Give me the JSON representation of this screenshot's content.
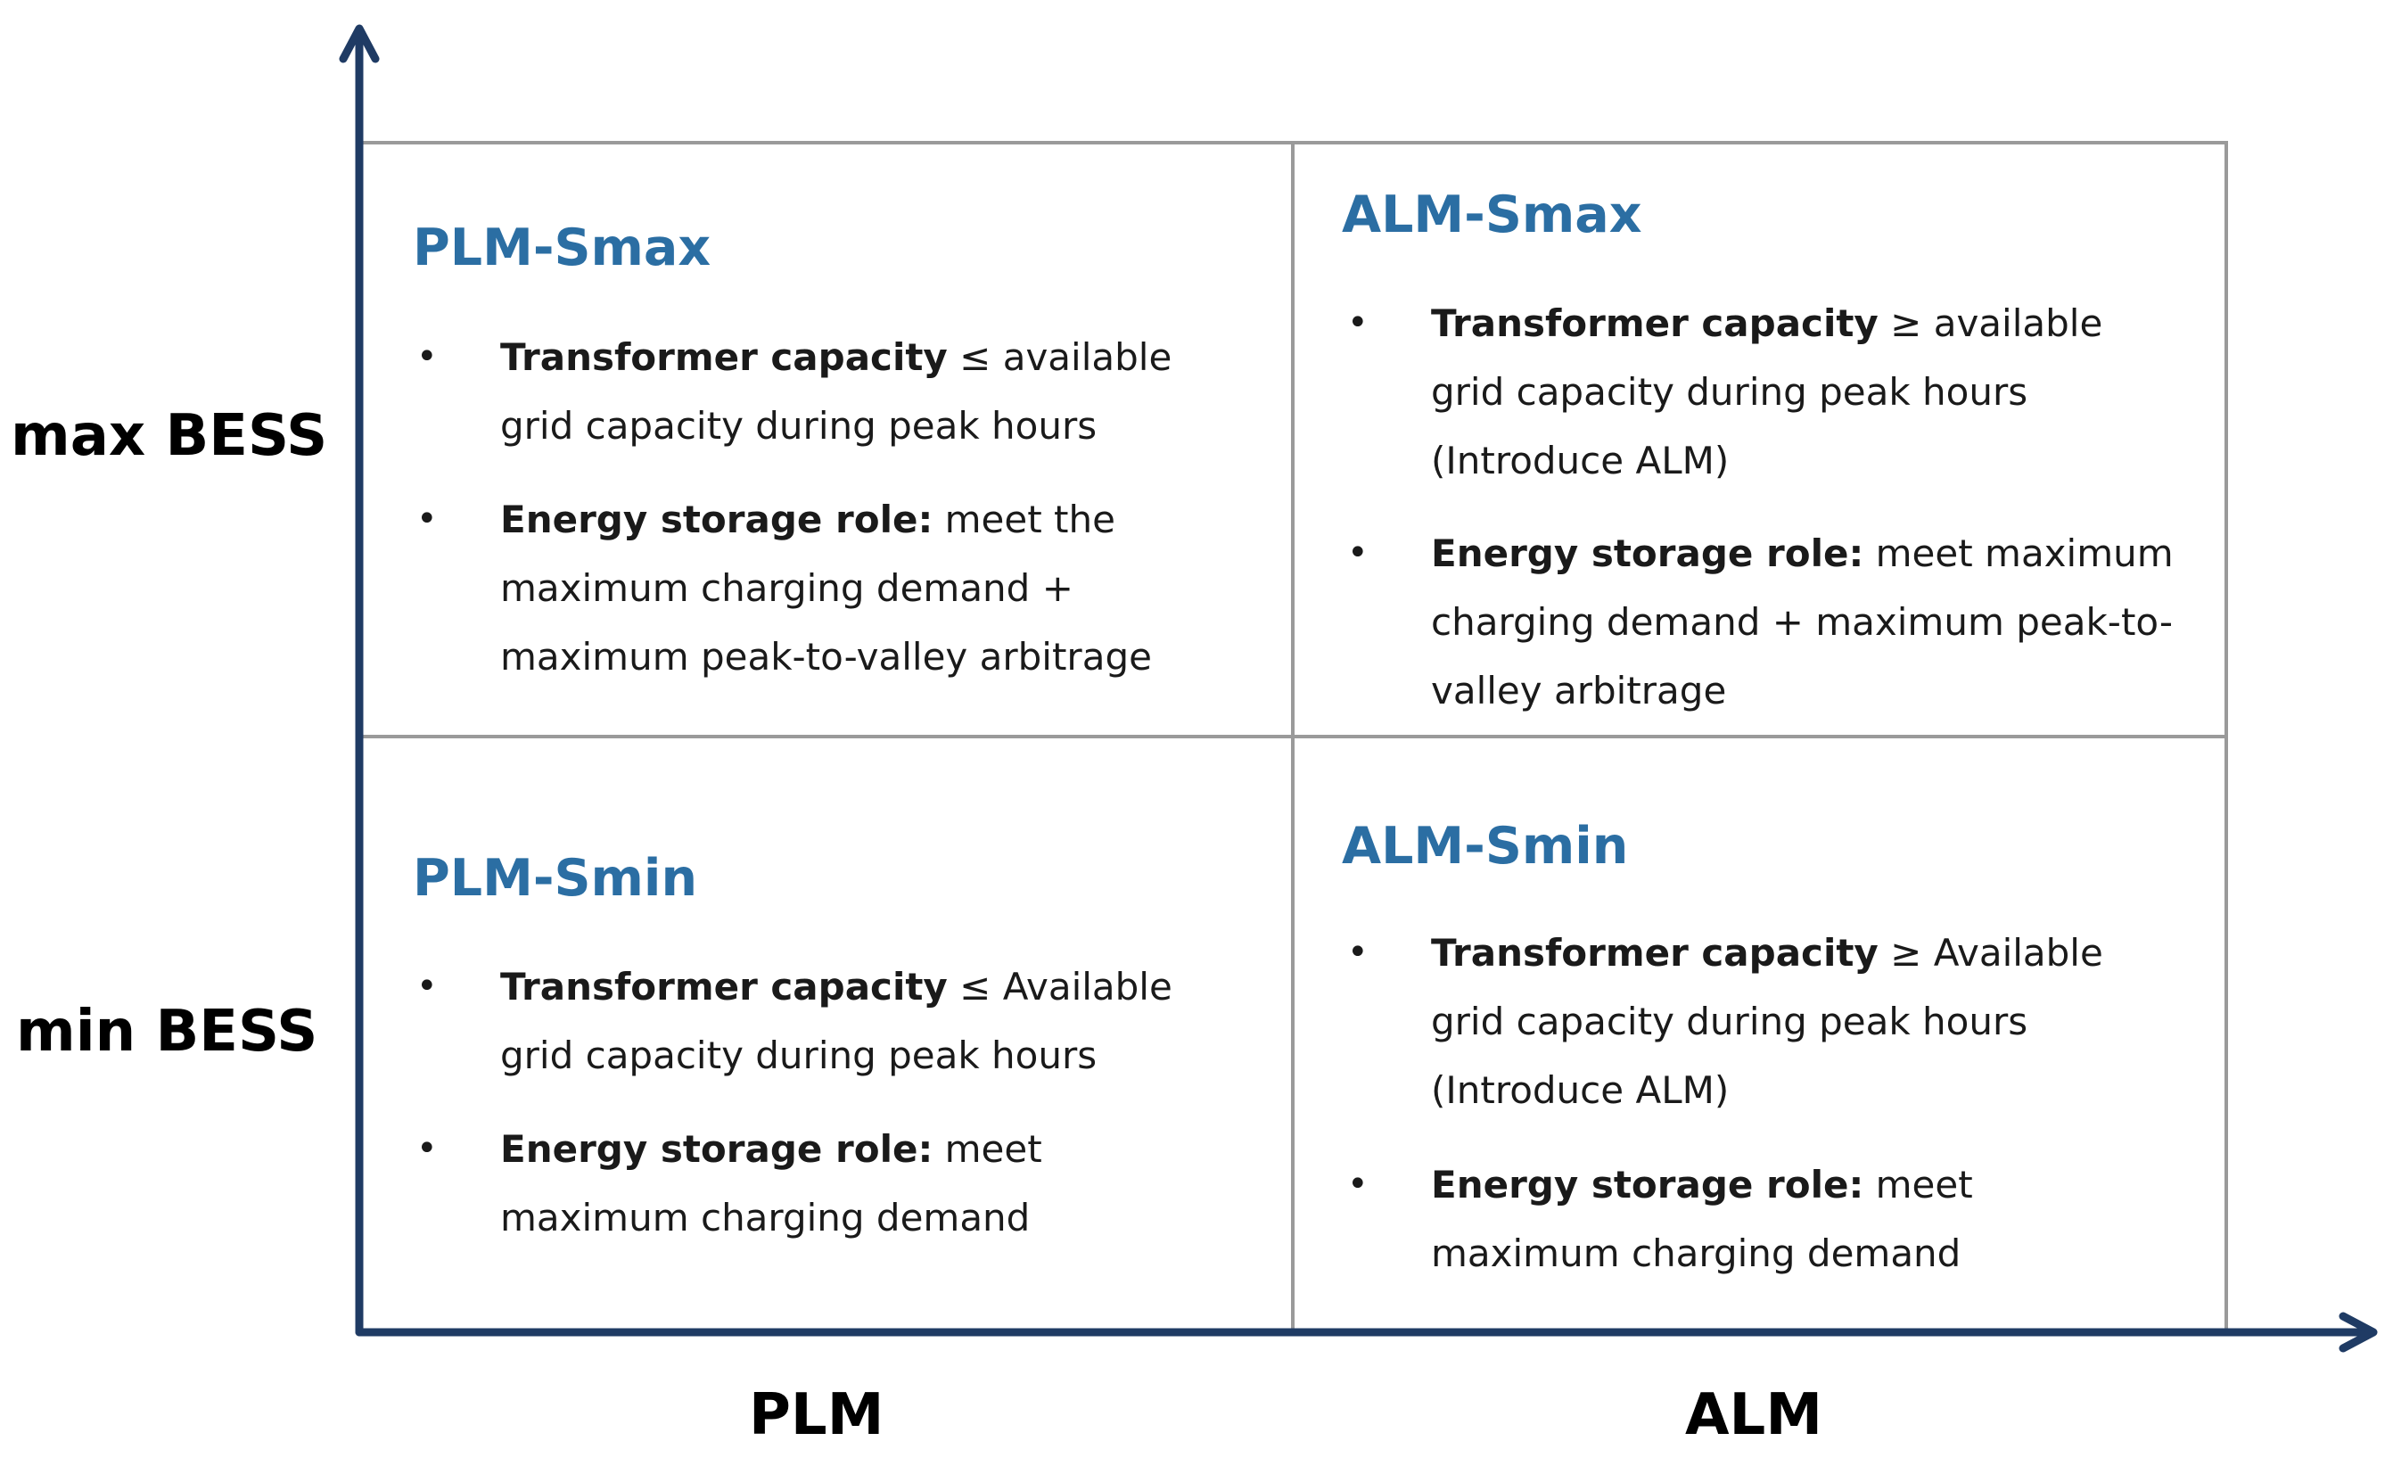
{
  "colors": {
    "axis": "#1f3b64",
    "grid": "#9a9a9a",
    "title": "#2b6ea3",
    "text": "#1a1a1a"
  },
  "row_labels": {
    "top": "max BESS",
    "bottom": "min BESS"
  },
  "col_labels": {
    "left": "PLM",
    "right": "ALM"
  },
  "quadrants": {
    "plm_smax": {
      "title": "PLM-Smax",
      "items": [
        {
          "label": "Transformer capacity",
          "text": " ≤ available grid capacity during peak hours"
        },
        {
          "label": "Energy storage role:",
          "text": " meet the maximum charging demand + maximum peak-to-valley arbitrage"
        }
      ]
    },
    "alm_smax": {
      "title": "ALM-Smax",
      "items": [
        {
          "label": "Transformer capacity",
          "text": " ≥ available grid capacity during peak hours (Introduce ALM)"
        },
        {
          "label": "Energy storage role:",
          "text": " meet maximum charging demand + maximum peak-to-valley arbitrage"
        }
      ]
    },
    "plm_smin": {
      "title": "PLM-Smin",
      "items": [
        {
          "label": "Transformer capacity",
          "text": " ≤ Available grid capacity during peak hours"
        },
        {
          "label": "Energy storage role:",
          "text": " meet maximum charging demand"
        }
      ]
    },
    "alm_smin": {
      "title": "ALM-Smin",
      "items": [
        {
          "label": "Transformer capacity",
          "text": " ≥ Available grid capacity during peak hours (Introduce ALM)"
        },
        {
          "label": "Energy storage role:",
          "text": " meet maximum charging demand"
        }
      ]
    }
  },
  "bullet": "•"
}
